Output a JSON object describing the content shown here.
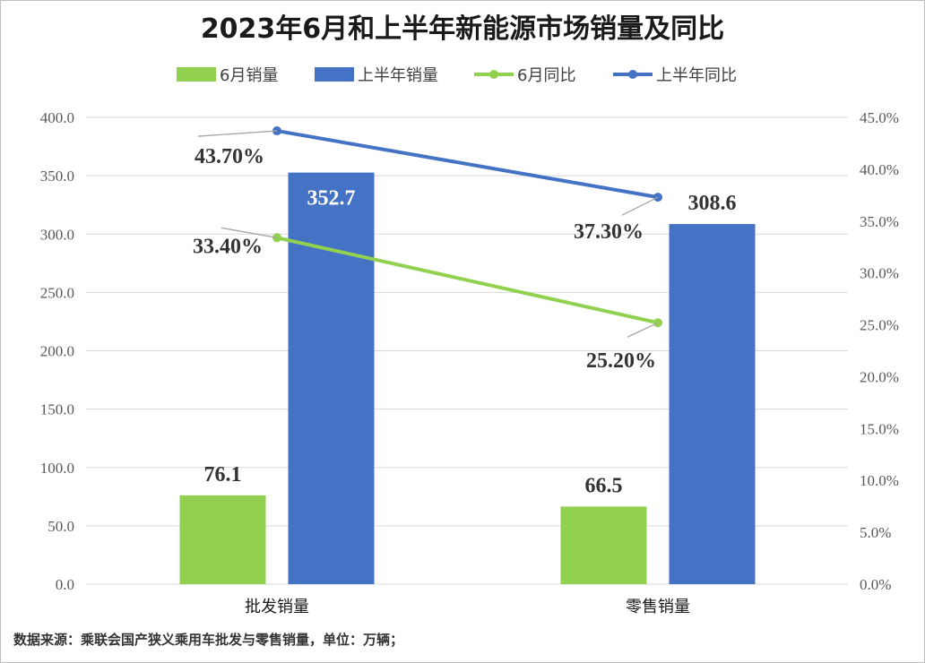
{
  "chart_data": {
    "type": "bar+line",
    "title": "2023年6月和上半年新能源市场销量及同比",
    "categories": [
      "批发销量",
      "零售销量"
    ],
    "bar_series": [
      {
        "name": "6月销量",
        "values": [
          76.1,
          66.5
        ],
        "labels": [
          "76.1",
          "66.5"
        ],
        "color": "#92D050"
      },
      {
        "name": "上半年销量",
        "values": [
          352.7,
          308.6
        ],
        "labels": [
          "352.7",
          "308.6"
        ],
        "color": "#4472C4"
      }
    ],
    "line_series": [
      {
        "name": "6月同比",
        "values": [
          33.4,
          25.2
        ],
        "labels": [
          "33.40%",
          "25.20%"
        ],
        "color": "#92D050"
      },
      {
        "name": "上半年同比",
        "values": [
          43.7,
          37.3
        ],
        "labels": [
          "43.70%",
          "37.30%"
        ],
        "color": "#4472C4"
      }
    ],
    "y_left": {
      "min": 0,
      "max": 400,
      "step": 50,
      "ticks": [
        "0.0",
        "50.0",
        "100.0",
        "150.0",
        "200.0",
        "250.0",
        "300.0",
        "350.0",
        "400.0"
      ]
    },
    "y_right": {
      "min": 0,
      "max": 45,
      "step": 5,
      "ticks": [
        "0.0%",
        "5.0%",
        "10.0%",
        "15.0%",
        "20.0%",
        "25.0%",
        "30.0%",
        "35.0%",
        "40.0%",
        "45.0%"
      ]
    },
    "gridlines": true,
    "legend_position": "top"
  },
  "source_note": "数据来源：乘联会国产狭义乘用车批发与零售销量，单位：万辆；"
}
